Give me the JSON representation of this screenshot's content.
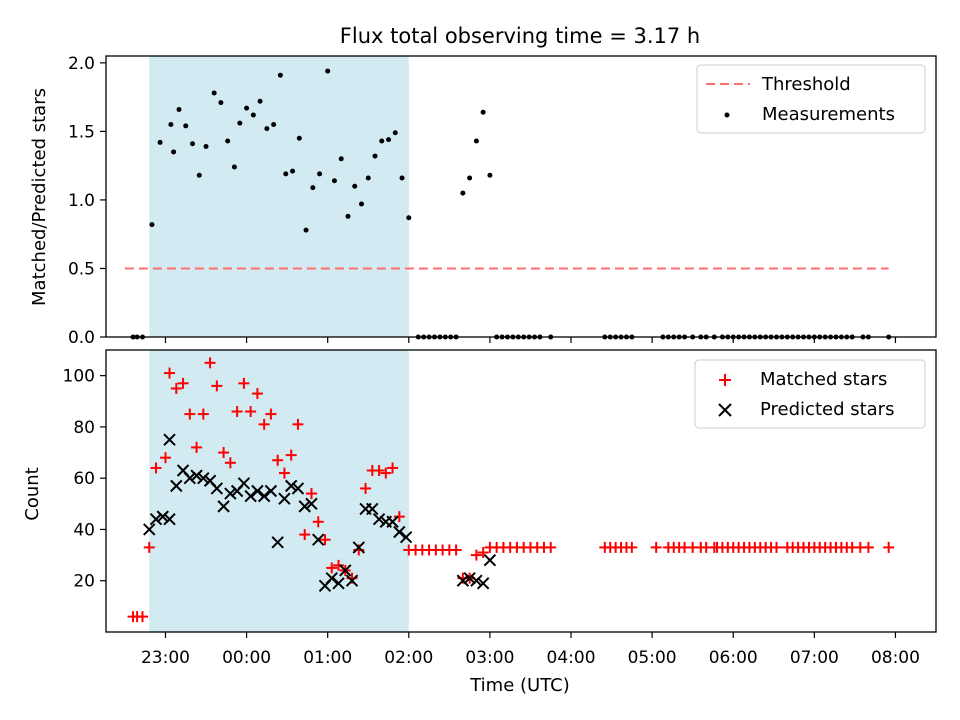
{
  "colors": {
    "shade": "#add8e6",
    "threshold": "#ff6f6f",
    "matched": "#ff0000",
    "predicted": "#000000",
    "measurement": "#000000"
  },
  "chart_data": [
    {
      "type": "scatter",
      "title": "Flux total observing time = 3.17 h",
      "xlabel": "",
      "ylabel": "Matched/Predicted stars",
      "xlim": [
        "22:16",
        "08:30"
      ],
      "ylim": [
        0,
        2.05
      ],
      "yticks": [
        "0.0",
        "0.5",
        "1.0",
        "1.5",
        "2.0"
      ],
      "shaded_range": [
        "22:48",
        "02:00"
      ],
      "legend": [
        "Threshold",
        "Measurements"
      ],
      "legend_position": "top-right",
      "threshold": {
        "name": "Threshold",
        "y": 0.5,
        "x_start": "22:30",
        "x_end": "07:55"
      },
      "series": [
        {
          "name": "Measurements",
          "points": [
            [
              "22:36",
              0
            ],
            [
              "22:39",
              0
            ],
            [
              "22:43",
              0
            ],
            [
              "22:50",
              0.82
            ],
            [
              "22:56",
              1.42
            ],
            [
              "23:04",
              1.55
            ],
            [
              "23:06",
              1.35
            ],
            [
              "23:10",
              1.66
            ],
            [
              "23:15",
              1.54
            ],
            [
              "23:20",
              1.41
            ],
            [
              "23:25",
              1.18
            ],
            [
              "23:30",
              1.39
            ],
            [
              "23:36",
              1.78
            ],
            [
              "23:41",
              1.71
            ],
            [
              "23:46",
              1.43
            ],
            [
              "23:51",
              1.24
            ],
            [
              "23:55",
              1.56
            ],
            [
              "00:00",
              1.67
            ],
            [
              "00:05",
              1.62
            ],
            [
              "00:10",
              1.72
            ],
            [
              "00:15",
              1.52
            ],
            [
              "00:20",
              1.55
            ],
            [
              "00:25",
              1.91
            ],
            [
              "00:29",
              1.19
            ],
            [
              "00:34",
              1.21
            ],
            [
              "00:39",
              1.45
            ],
            [
              "00:44",
              0.78
            ],
            [
              "00:49",
              1.09
            ],
            [
              "00:54",
              1.19
            ],
            [
              "01:00",
              1.94
            ],
            [
              "01:05",
              1.14
            ],
            [
              "01:10",
              1.3
            ],
            [
              "01:15",
              0.88
            ],
            [
              "01:20",
              1.1
            ],
            [
              "01:25",
              0.97
            ],
            [
              "01:30",
              1.16
            ],
            [
              "01:35",
              1.32
            ],
            [
              "01:40",
              1.43
            ],
            [
              "01:45",
              1.44
            ],
            [
              "01:50",
              1.49
            ],
            [
              "01:55",
              1.16
            ],
            [
              "02:00",
              0.87
            ],
            [
              "02:07",
              0
            ],
            [
              "02:11",
              0
            ],
            [
              "02:15",
              0
            ],
            [
              "02:19",
              0
            ],
            [
              "02:23",
              0
            ],
            [
              "02:27",
              0
            ],
            [
              "02:31",
              0
            ],
            [
              "02:35",
              0
            ],
            [
              "02:40",
              1.05
            ],
            [
              "02:45",
              1.16
            ],
            [
              "02:50",
              1.43
            ],
            [
              "02:55",
              1.64
            ],
            [
              "03:00",
              1.18
            ],
            [
              "03:05",
              0
            ],
            [
              "03:09",
              0
            ],
            [
              "03:13",
              0
            ],
            [
              "03:17",
              0
            ],
            [
              "03:21",
              0
            ],
            [
              "03:25",
              0
            ],
            [
              "03:29",
              0
            ],
            [
              "03:33",
              0
            ],
            [
              "03:37",
              0
            ],
            [
              "03:45",
              0
            ],
            [
              "04:25",
              0
            ],
            [
              "04:29",
              0
            ],
            [
              "04:33",
              0
            ],
            [
              "04:37",
              0
            ],
            [
              "04:41",
              0
            ],
            [
              "04:45",
              0
            ],
            [
              "05:08",
              0
            ],
            [
              "05:12",
              0
            ],
            [
              "05:16",
              0
            ],
            [
              "05:20",
              0
            ],
            [
              "05:24",
              0
            ],
            [
              "05:30",
              0
            ],
            [
              "05:36",
              0
            ],
            [
              "05:40",
              0
            ],
            [
              "05:46",
              0
            ],
            [
              "05:52",
              0
            ],
            [
              "05:56",
              0
            ],
            [
              "06:00",
              0
            ],
            [
              "06:04",
              0
            ],
            [
              "06:08",
              0
            ],
            [
              "06:12",
              0
            ],
            [
              "06:16",
              0
            ],
            [
              "06:20",
              0
            ],
            [
              "06:24",
              0
            ],
            [
              "06:28",
              0
            ],
            [
              "06:32",
              0
            ],
            [
              "06:36",
              0
            ],
            [
              "06:40",
              0
            ],
            [
              "06:44",
              0
            ],
            [
              "06:48",
              0
            ],
            [
              "06:52",
              0
            ],
            [
              "06:56",
              0
            ],
            [
              "07:00",
              0
            ],
            [
              "07:04",
              0
            ],
            [
              "07:08",
              0
            ],
            [
              "07:12",
              0
            ],
            [
              "07:16",
              0
            ],
            [
              "07:20",
              0
            ],
            [
              "07:24",
              0
            ],
            [
              "07:28",
              0
            ],
            [
              "07:36",
              0
            ],
            [
              "07:40",
              0
            ],
            [
              "07:55",
              0
            ]
          ]
        }
      ]
    },
    {
      "type": "scatter",
      "title": "",
      "xlabel": "Time (UTC)",
      "ylabel": "Count",
      "xlim": [
        "22:16",
        "08:30"
      ],
      "ylim": [
        0,
        110
      ],
      "xticks": [
        "23:00",
        "00:00",
        "01:00",
        "02:00",
        "03:00",
        "04:00",
        "05:00",
        "06:00",
        "07:00",
        "08:00"
      ],
      "yticks": [
        "20",
        "40",
        "60",
        "80",
        "100"
      ],
      "shaded_range": [
        "22:48",
        "02:00"
      ],
      "legend": [
        "Matched stars",
        "Predicted stars"
      ],
      "legend_position": "top-right",
      "series": [
        {
          "name": "Matched stars",
          "marker": "plus",
          "points": [
            [
              "22:36",
              6
            ],
            [
              "22:39",
              6
            ],
            [
              "22:43",
              6
            ],
            [
              "22:48",
              33
            ],
            [
              "22:53",
              64
            ],
            [
              "23:00",
              68
            ],
            [
              "23:03",
              101
            ],
            [
              "23:08",
              95
            ],
            [
              "23:13",
              97
            ],
            [
              "23:18",
              85
            ],
            [
              "23:23",
              72
            ],
            [
              "23:28",
              85
            ],
            [
              "23:33",
              105
            ],
            [
              "23:38",
              96
            ],
            [
              "23:43",
              70
            ],
            [
              "23:48",
              66
            ],
            [
              "23:53",
              86
            ],
            [
              "23:58",
              97
            ],
            [
              "00:03",
              86
            ],
            [
              "00:08",
              93
            ],
            [
              "00:13",
              81
            ],
            [
              "00:18",
              85
            ],
            [
              "00:23",
              67
            ],
            [
              "00:28",
              62
            ],
            [
              "00:33",
              69
            ],
            [
              "00:38",
              81
            ],
            [
              "00:43",
              38
            ],
            [
              "00:48",
              54
            ],
            [
              "00:53",
              43
            ],
            [
              "00:58",
              36
            ],
            [
              "01:03",
              25
            ],
            [
              "01:08",
              26
            ],
            [
              "01:13",
              24
            ],
            [
              "01:18",
              21
            ],
            [
              "01:23",
              32
            ],
            [
              "01:28",
              56
            ],
            [
              "01:33",
              63
            ],
            [
              "01:38",
              63
            ],
            [
              "01:43",
              62
            ],
            [
              "01:48",
              64
            ],
            [
              "01:53",
              45
            ],
            [
              "02:00",
              32
            ],
            [
              "02:05",
              32
            ],
            [
              "02:10",
              32
            ],
            [
              "02:15",
              32
            ],
            [
              "02:20",
              32
            ],
            [
              "02:25",
              32
            ],
            [
              "02:30",
              32
            ],
            [
              "02:35",
              32
            ],
            [
              "02:40",
              21
            ],
            [
              "02:45",
              21
            ],
            [
              "02:50",
              30
            ],
            [
              "02:55",
              31
            ],
            [
              "03:00",
              33
            ],
            [
              "03:05",
              33
            ],
            [
              "03:10",
              33
            ],
            [
              "03:15",
              33
            ],
            [
              "03:20",
              33
            ],
            [
              "03:25",
              33
            ],
            [
              "03:30",
              33
            ],
            [
              "03:35",
              33
            ],
            [
              "03:40",
              33
            ],
            [
              "03:45",
              33
            ],
            [
              "04:25",
              33
            ],
            [
              "04:29",
              33
            ],
            [
              "04:33",
              33
            ],
            [
              "04:37",
              33
            ],
            [
              "04:41",
              33
            ],
            [
              "04:45",
              33
            ],
            [
              "05:03",
              33
            ],
            [
              "05:12",
              33
            ],
            [
              "05:16",
              33
            ],
            [
              "05:20",
              33
            ],
            [
              "05:24",
              33
            ],
            [
              "05:30",
              33
            ],
            [
              "05:36",
              33
            ],
            [
              "05:40",
              33
            ],
            [
              "05:46",
              33
            ],
            [
              "05:48",
              33
            ],
            [
              "05:52",
              33
            ],
            [
              "05:56",
              33
            ],
            [
              "06:00",
              33
            ],
            [
              "06:04",
              33
            ],
            [
              "06:08",
              33
            ],
            [
              "06:12",
              33
            ],
            [
              "06:16",
              33
            ],
            [
              "06:20",
              33
            ],
            [
              "06:24",
              33
            ],
            [
              "06:28",
              33
            ],
            [
              "06:32",
              33
            ],
            [
              "06:40",
              33
            ],
            [
              "06:44",
              33
            ],
            [
              "06:48",
              33
            ],
            [
              "06:52",
              33
            ],
            [
              "06:56",
              33
            ],
            [
              "07:00",
              33
            ],
            [
              "07:04",
              33
            ],
            [
              "07:08",
              33
            ],
            [
              "07:12",
              33
            ],
            [
              "07:16",
              33
            ],
            [
              "07:20",
              33
            ],
            [
              "07:24",
              33
            ],
            [
              "07:28",
              33
            ],
            [
              "07:34",
              33
            ],
            [
              "07:40",
              33
            ],
            [
              "07:55",
              33
            ]
          ]
        },
        {
          "name": "Predicted stars",
          "marker": "x",
          "points": [
            [
              "22:48",
              40
            ],
            [
              "22:53",
              44
            ],
            [
              "22:58",
              45
            ],
            [
              "23:03",
              44
            ],
            [
              "23:03",
              75
            ],
            [
              "23:08",
              57
            ],
            [
              "23:13",
              63
            ],
            [
              "23:18",
              60
            ],
            [
              "23:23",
              61
            ],
            [
              "23:28",
              60
            ],
            [
              "23:33",
              59
            ],
            [
              "23:38",
              56
            ],
            [
              "23:43",
              49
            ],
            [
              "23:48",
              54
            ],
            [
              "23:53",
              55
            ],
            [
              "23:58",
              58
            ],
            [
              "00:03",
              53
            ],
            [
              "00:08",
              55
            ],
            [
              "00:13",
              53
            ],
            [
              "00:18",
              55
            ],
            [
              "00:23",
              35
            ],
            [
              "00:28",
              52
            ],
            [
              "00:33",
              57
            ],
            [
              "00:38",
              56
            ],
            [
              "00:43",
              49
            ],
            [
              "00:48",
              50
            ],
            [
              "00:53",
              36
            ],
            [
              "00:58",
              18
            ],
            [
              "01:03",
              21
            ],
            [
              "01:08",
              19
            ],
            [
              "01:13",
              24
            ],
            [
              "01:18",
              20
            ],
            [
              "01:23",
              33
            ],
            [
              "01:28",
              48
            ],
            [
              "01:33",
              48
            ],
            [
              "01:38",
              44
            ],
            [
              "01:43",
              43
            ],
            [
              "01:48",
              43
            ],
            [
              "01:53",
              39
            ],
            [
              "01:58",
              37
            ],
            [
              "02:40",
              20
            ],
            [
              "02:45",
              21
            ],
            [
              "02:50",
              20
            ],
            [
              "02:55",
              19
            ],
            [
              "03:00",
              28
            ]
          ]
        }
      ]
    }
  ]
}
